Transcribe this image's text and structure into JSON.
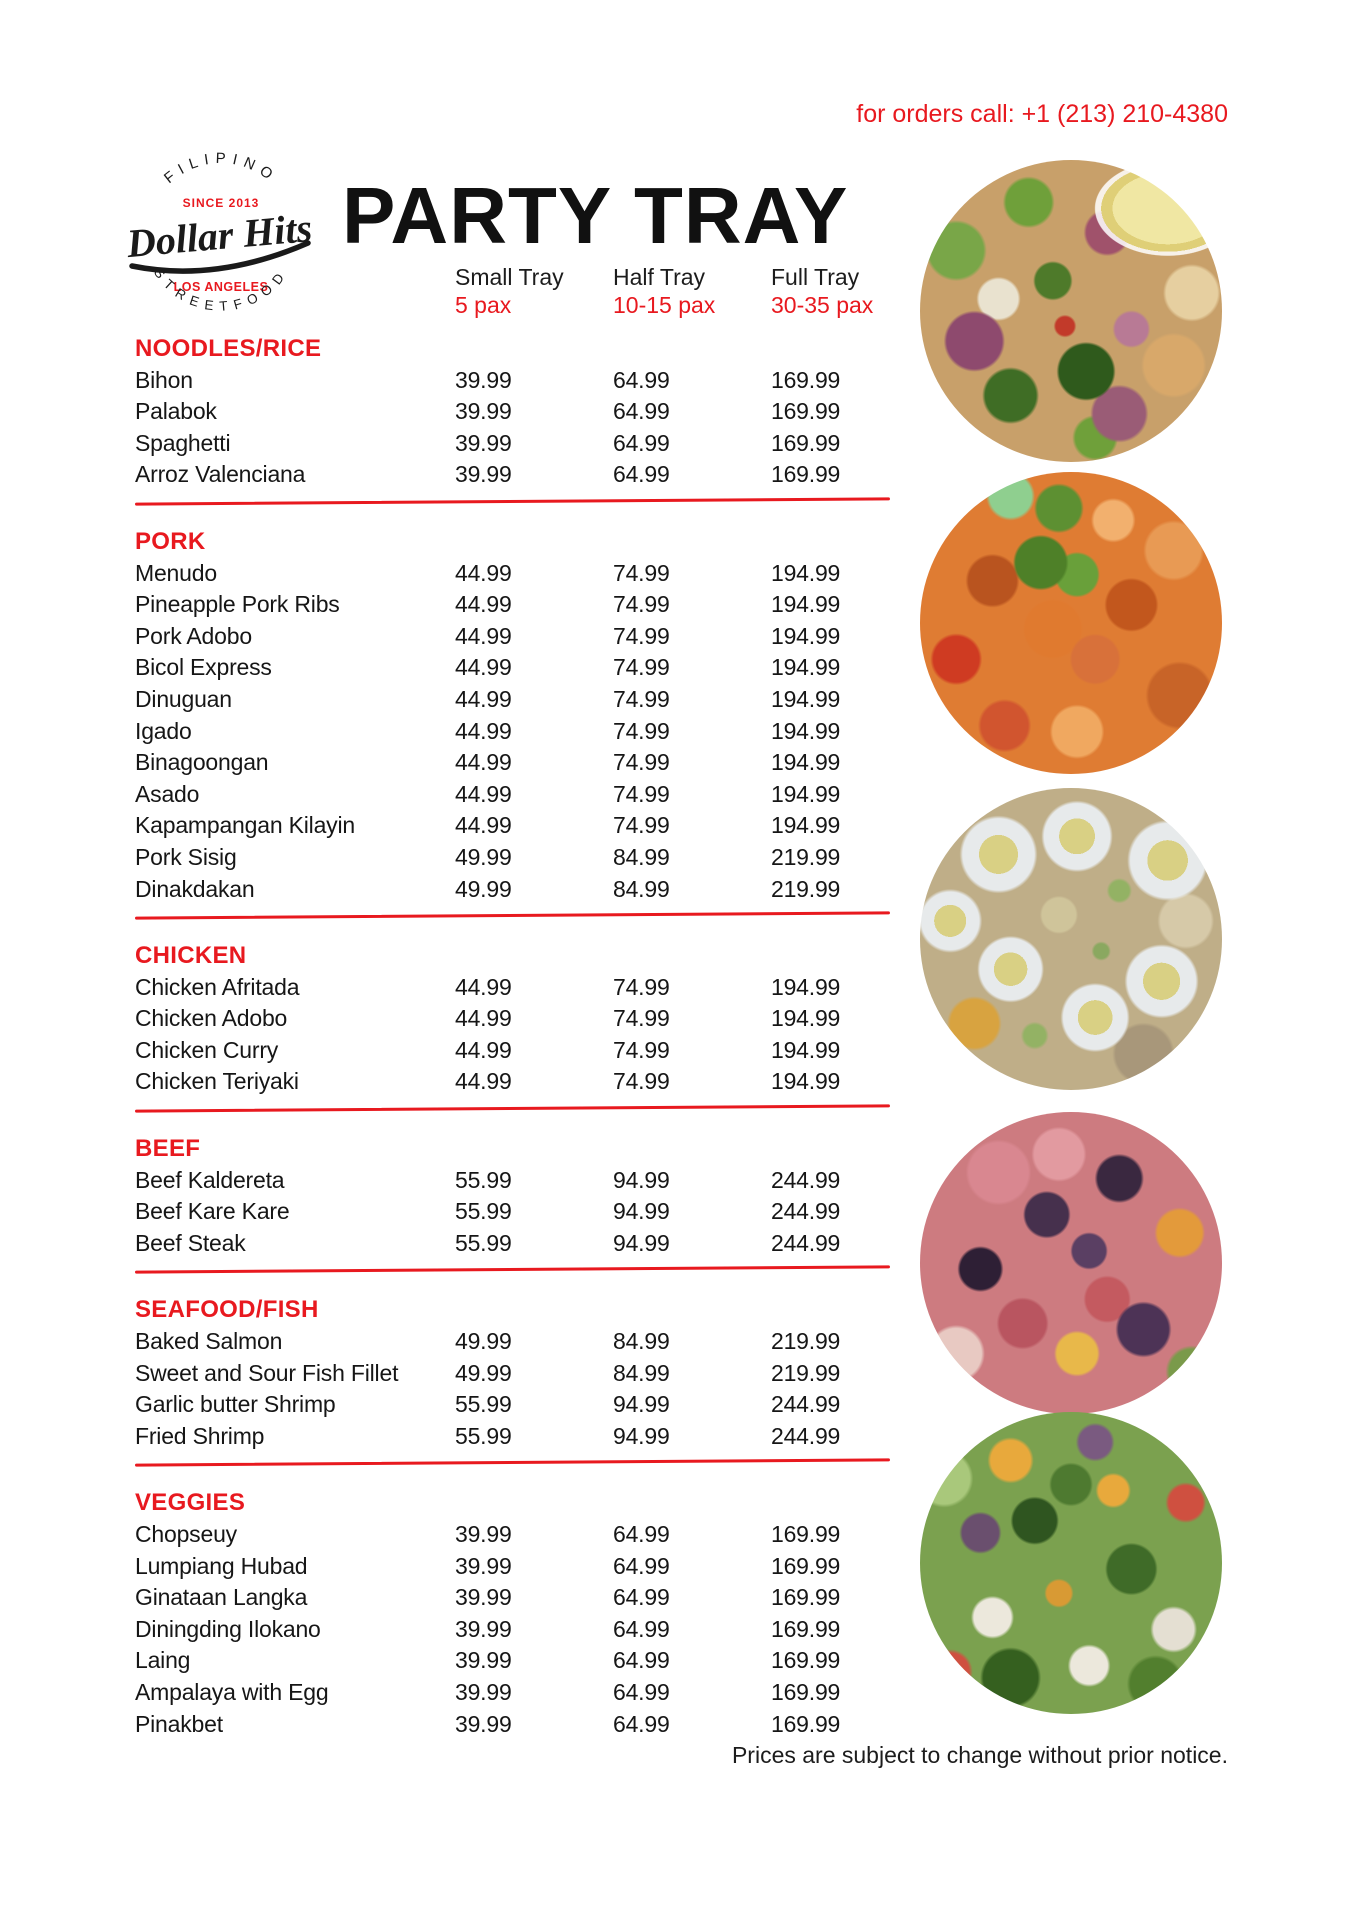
{
  "colors": {
    "accent_red": "#e8191f",
    "text_black": "#161616"
  },
  "header": {
    "phone_label": "for orders call: +1 (213) 210-4380",
    "title": "PARTY TRAY",
    "logo": {
      "top_arc": "FILIPINO",
      "since": "SINCE 2013",
      "brand": "Dollar Hits",
      "city": "LOS ANGELES",
      "bottom_arc": "STREETFOOD"
    }
  },
  "columns": [
    {
      "label": "Small Tray",
      "pax": "5 pax"
    },
    {
      "label": "Half Tray",
      "pax": "10-15 pax"
    },
    {
      "label": "Full Tray",
      "pax": "30-35 pax"
    }
  ],
  "sections": [
    {
      "name": "NOODLES/RICE",
      "items": [
        {
          "name": "Bihon",
          "prices": [
            "39.99",
            "64.99",
            "169.99"
          ]
        },
        {
          "name": "Palabok",
          "prices": [
            "39.99",
            "64.99",
            "169.99"
          ]
        },
        {
          "name": "Spaghetti",
          "prices": [
            "39.99",
            "64.99",
            "169.99"
          ]
        },
        {
          "name": "Arroz Valenciana",
          "prices": [
            "39.99",
            "64.99",
            "169.99"
          ]
        }
      ]
    },
    {
      "name": "PORK",
      "items": [
        {
          "name": "Menudo",
          "prices": [
            "44.99",
            "74.99",
            "194.99"
          ]
        },
        {
          "name": "Pineapple Pork Ribs",
          "prices": [
            "44.99",
            "74.99",
            "194.99"
          ]
        },
        {
          "name": "Pork Adobo",
          "prices": [
            "44.99",
            "74.99",
            "194.99"
          ]
        },
        {
          "name": "Bicol Express",
          "prices": [
            "44.99",
            "74.99",
            "194.99"
          ]
        },
        {
          "name": "Dinuguan",
          "prices": [
            "44.99",
            "74.99",
            "194.99"
          ]
        },
        {
          "name": "Igado",
          "prices": [
            "44.99",
            "74.99",
            "194.99"
          ]
        },
        {
          "name": "Binagoongan",
          "prices": [
            "44.99",
            "74.99",
            "194.99"
          ]
        },
        {
          "name": "Asado",
          "prices": [
            "44.99",
            "74.99",
            "194.99"
          ]
        },
        {
          "name": "Kapampangan Kilayin",
          "prices": [
            "44.99",
            "74.99",
            "194.99"
          ]
        },
        {
          "name": "Pork Sisig",
          "prices": [
            "49.99",
            "84.99",
            "219.99"
          ]
        },
        {
          "name": "Dinakdakan",
          "prices": [
            "49.99",
            "84.99",
            "219.99"
          ]
        }
      ]
    },
    {
      "name": "CHICKEN",
      "items": [
        {
          "name": "Chicken Afritada",
          "prices": [
            "44.99",
            "74.99",
            "194.99"
          ]
        },
        {
          "name": "Chicken Adobo",
          "prices": [
            "44.99",
            "74.99",
            "194.99"
          ]
        },
        {
          "name": "Chicken Curry",
          "prices": [
            "44.99",
            "74.99",
            "194.99"
          ]
        },
        {
          "name": "Chicken Teriyaki",
          "prices": [
            "44.99",
            "74.99",
            "194.99"
          ]
        }
      ]
    },
    {
      "name": "BEEF",
      "items": [
        {
          "name": "Beef Kaldereta",
          "prices": [
            "55.99",
            "94.99",
            "244.99"
          ]
        },
        {
          "name": "Beef Kare Kare",
          "prices": [
            "55.99",
            "94.99",
            "244.99"
          ]
        },
        {
          "name": "Beef Steak",
          "prices": [
            "55.99",
            "94.99",
            "244.99"
          ]
        }
      ]
    },
    {
      "name": "SEAFOOD/FISH",
      "items": [
        {
          "name": "Baked Salmon",
          "prices": [
            "49.99",
            "84.99",
            "219.99"
          ]
        },
        {
          "name": "Sweet and Sour Fish Fillet",
          "prices": [
            "49.99",
            "84.99",
            "219.99"
          ]
        },
        {
          "name": "Garlic butter Shrimp",
          "prices": [
            "55.99",
            "94.99",
            "244.99"
          ]
        },
        {
          "name": "Fried Shrimp",
          "prices": [
            "55.99",
            "94.99",
            "244.99"
          ]
        }
      ]
    },
    {
      "name": "VEGGIES",
      "items": [
        {
          "name": "Chopseuy",
          "prices": [
            "39.99",
            "64.99",
            "169.99"
          ]
        },
        {
          "name": "Lumpiang Hubad",
          "prices": [
            "39.99",
            "64.99",
            "169.99"
          ]
        },
        {
          "name": "Ginataan Langka",
          "prices": [
            "39.99",
            "64.99",
            "169.99"
          ]
        },
        {
          "name": "Diningding Ilokano",
          "prices": [
            "39.99",
            "64.99",
            "169.99"
          ]
        },
        {
          "name": "Laing",
          "prices": [
            "39.99",
            "64.99",
            "169.99"
          ]
        },
        {
          "name": "Ampalaya with Egg",
          "prices": [
            "39.99",
            "64.99",
            "169.99"
          ]
        },
        {
          "name": "Pinakbet",
          "prices": [
            "39.99",
            "64.99",
            "169.99"
          ]
        }
      ]
    }
  ],
  "images": [
    {
      "name": "pork-salad-with-lemon-photo"
    },
    {
      "name": "menudo-pork-stew-photo"
    },
    {
      "name": "sisig-with-quail-eggs-photo"
    },
    {
      "name": "eggplant-corned-beef-stew-photo"
    },
    {
      "name": "mixed-vegetables-dinengdeng-photo"
    }
  ],
  "footer": {
    "note": "Prices are subject to change without prior notice."
  }
}
